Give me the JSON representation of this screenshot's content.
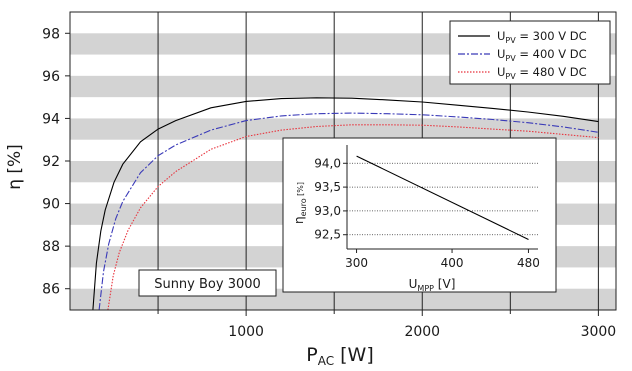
{
  "chart_data": [
    {
      "type": "line",
      "xlabel": "P",
      "xlabel_sub": "AC",
      "xlabel_unit": " [W]",
      "ylabel": "η [%]",
      "xlim": [
        0,
        3100
      ],
      "ylim": [
        85,
        99
      ],
      "x_ticks": [
        1000,
        2000,
        3000
      ],
      "x_minor_ticks": [
        500,
        1500,
        2500
      ],
      "y_ticks": [
        86,
        88,
        90,
        92,
        94,
        96,
        98
      ],
      "grid": "vertical lines at 500 W steps, alternating grey horizontal bands",
      "legend_position": "top-right",
      "annotation": "Sunny Boy 3000",
      "series": [
        {
          "name": "U_PV = 300 V DC",
          "legend_main": "U",
          "legend_sub": "PV",
          "legend_rest": " = 300 V DC",
          "color": "#000000",
          "dash": "solid",
          "points": [
            [
              130,
              85
            ],
            [
              150,
              87.2
            ],
            [
              175,
              88.7
            ],
            [
              200,
              89.7
            ],
            [
              250,
              91
            ],
            [
              300,
              91.85
            ],
            [
              400,
              92.9
            ],
            [
              500,
              93.5
            ],
            [
              600,
              93.9
            ],
            [
              800,
              94.5
            ],
            [
              1000,
              94.8
            ],
            [
              1200,
              94.93
            ],
            [
              1400,
              94.97
            ],
            [
              1600,
              94.95
            ],
            [
              1800,
              94.87
            ],
            [
              2000,
              94.77
            ],
            [
              2200,
              94.62
            ],
            [
              2400,
              94.47
            ],
            [
              2600,
              94.3
            ],
            [
              2800,
              94.1
            ],
            [
              3000,
              93.85
            ]
          ]
        },
        {
          "name": "U_PV = 400 V DC",
          "legend_main": "U",
          "legend_sub": "PV",
          "legend_rest": " = 400 V DC",
          "color": "#3a3ab8",
          "dash": "7,2,2,2",
          "points": [
            [
              165,
              85
            ],
            [
              190,
              86.8
            ],
            [
              220,
              88.1
            ],
            [
              260,
              89.3
            ],
            [
              300,
              90.1
            ],
            [
              400,
              91.45
            ],
            [
              500,
              92.25
            ],
            [
              600,
              92.75
            ],
            [
              800,
              93.45
            ],
            [
              1000,
              93.9
            ],
            [
              1200,
              94.12
            ],
            [
              1400,
              94.22
            ],
            [
              1600,
              94.25
            ],
            [
              1800,
              94.22
            ],
            [
              2000,
              94.17
            ],
            [
              2200,
              94.07
            ],
            [
              2400,
              93.95
            ],
            [
              2600,
              93.8
            ],
            [
              2800,
              93.6
            ],
            [
              3000,
              93.35
            ]
          ]
        },
        {
          "name": "U_PV = 480 V DC",
          "legend_main": "U",
          "legend_sub": "PV",
          "legend_rest": " = 480 V DC",
          "color": "#e8323c",
          "dash": "1.5,1.5",
          "points": [
            [
              215,
              85
            ],
            [
              245,
              86.6
            ],
            [
              280,
              87.7
            ],
            [
              330,
              88.75
            ],
            [
              400,
              89.8
            ],
            [
              500,
              90.8
            ],
            [
              600,
              91.5
            ],
            [
              800,
              92.55
            ],
            [
              1000,
              93.15
            ],
            [
              1200,
              93.45
            ],
            [
              1400,
              93.62
            ],
            [
              1600,
              93.7
            ],
            [
              1800,
              93.7
            ],
            [
              2000,
              93.68
            ],
            [
              2200,
              93.6
            ],
            [
              2400,
              93.5
            ],
            [
              2600,
              93.4
            ],
            [
              2800,
              93.25
            ],
            [
              3000,
              93.1
            ]
          ]
        }
      ]
    },
    {
      "type": "line",
      "inset": true,
      "xlabel": "U",
      "xlabel_sub": "MPP",
      "xlabel_unit": " [V]",
      "ylabel": "η",
      "ylabel_sub": "euro",
      "ylabel_unit": " [%]",
      "xlim": [
        290,
        490
      ],
      "ylim": [
        92.2,
        94.3
      ],
      "x_ticks": [
        300,
        400,
        480
      ],
      "y_ticks": [
        94.0,
        93.5,
        93.0,
        92.5
      ],
      "y_tick_labels": [
        "94,0",
        "93,5",
        "93,0",
        "92,5"
      ],
      "grid": "dotted horizontal",
      "series": [
        {
          "color": "#000000",
          "points": [
            [
              300,
              94.15
            ],
            [
              480,
              92.4
            ]
          ]
        }
      ]
    }
  ]
}
